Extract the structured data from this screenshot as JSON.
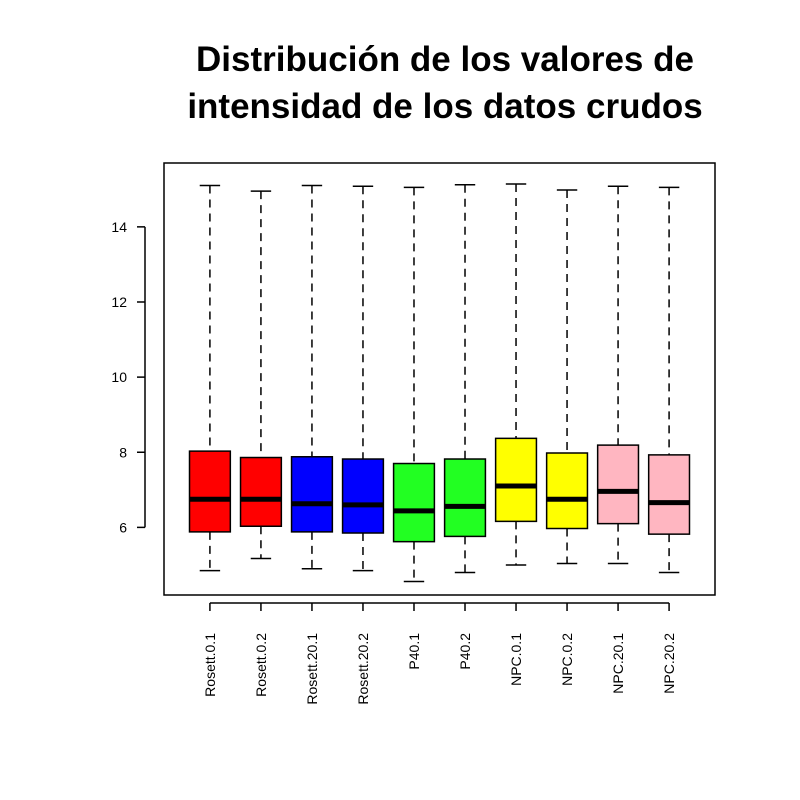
{
  "chart_data": {
    "type": "boxplot",
    "title_lines": [
      "Distribución de los valores de",
      "intensidad de los datos crudos"
    ],
    "xlabel": "",
    "ylabel": "",
    "ylim": [
      4.2,
      15.7
    ],
    "yticks": [
      6,
      8,
      10,
      12,
      14
    ],
    "grid": false,
    "categories": [
      "Rosett.0.1",
      "Rosett.0.2",
      "Rosett.20.1",
      "Rosett.20.2",
      "P40.1",
      "P40.2",
      "NPC.0.1",
      "NPC.0.2",
      "NPC.20.1",
      "NPC.20.2"
    ],
    "colors": [
      "#ff0000",
      "#ff0000",
      "#0000ff",
      "#0000ff",
      "#22ff22",
      "#22ff22",
      "#ffff00",
      "#ffff00",
      "#ffb6c1",
      "#ffb6c1"
    ],
    "boxes": [
      {
        "min": 4.85,
        "q1": 5.88,
        "median": 6.75,
        "q3": 8.03,
        "max": 15.1
      },
      {
        "min": 5.17,
        "q1": 6.03,
        "median": 6.75,
        "q3": 7.86,
        "max": 14.95
      },
      {
        "min": 4.9,
        "q1": 5.88,
        "median": 6.63,
        "q3": 7.88,
        "max": 15.1
      },
      {
        "min": 4.85,
        "q1": 5.85,
        "median": 6.6,
        "q3": 7.82,
        "max": 15.08
      },
      {
        "min": 4.56,
        "q1": 5.62,
        "median": 6.44,
        "q3": 7.7,
        "max": 15.05
      },
      {
        "min": 4.8,
        "q1": 5.76,
        "median": 6.56,
        "q3": 7.82,
        "max": 15.12
      },
      {
        "min": 5.0,
        "q1": 6.16,
        "median": 7.1,
        "q3": 8.37,
        "max": 15.14
      },
      {
        "min": 5.04,
        "q1": 5.97,
        "median": 6.75,
        "q3": 7.98,
        "max": 14.98
      },
      {
        "min": 5.04,
        "q1": 6.1,
        "median": 6.96,
        "q3": 8.19,
        "max": 15.08
      },
      {
        "min": 4.8,
        "q1": 5.82,
        "median": 6.66,
        "q3": 7.93,
        "max": 15.05
      }
    ]
  }
}
